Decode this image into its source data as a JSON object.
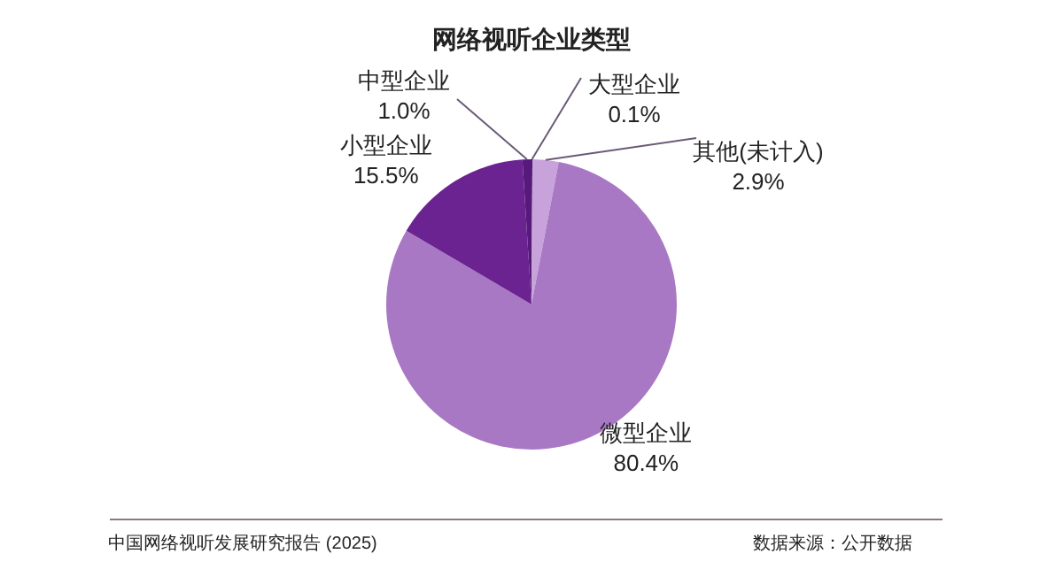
{
  "chart_data": {
    "type": "pie",
    "title": "网络视听企业类型",
    "categories": [
      "大型企业",
      "其他(未计入)",
      "微型企业",
      "小型企业",
      "中型企业"
    ],
    "values": [
      0.1,
      2.9,
      80.4,
      15.5,
      1.0
    ],
    "value_labels": [
      "0.1%",
      "2.9%",
      "80.4%",
      "15.5%",
      "1.0%"
    ],
    "colors": [
      "#4b1a6e",
      "#c8a2da",
      "#a978c4",
      "#6a2390",
      "#571a7c"
    ],
    "annotations": [
      "中国网络视听发展研究报告 (2025)",
      "数据来源：公开数据"
    ]
  }
}
